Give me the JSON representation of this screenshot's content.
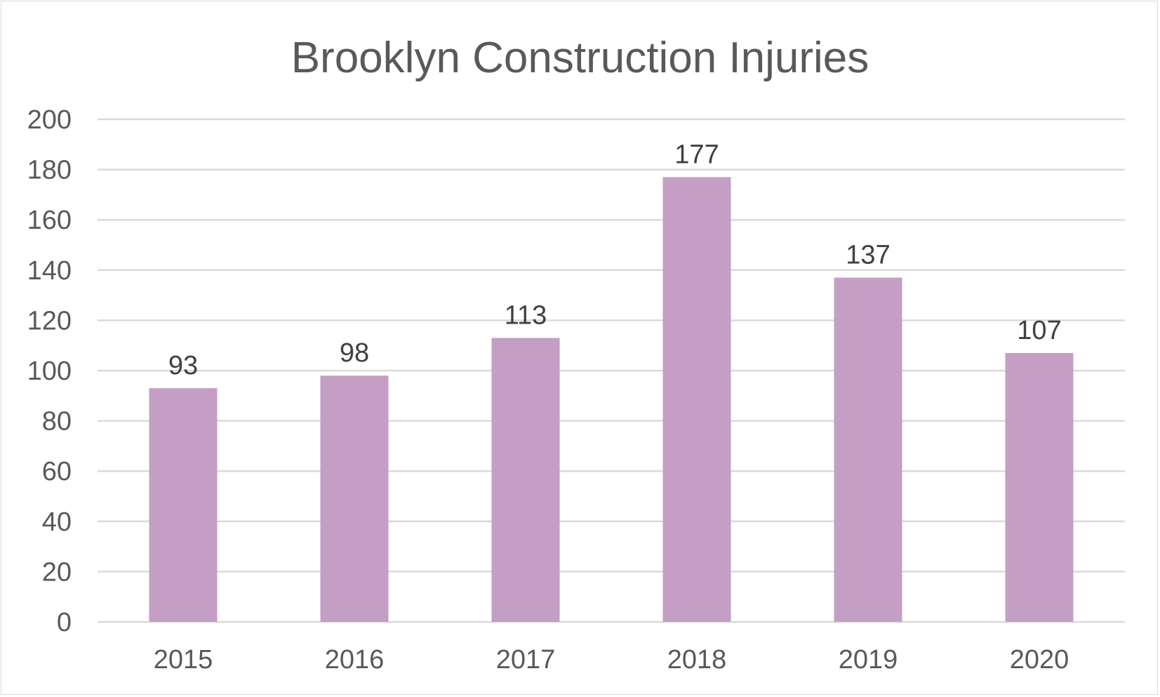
{
  "chart_data": {
    "type": "bar",
    "title": "Brooklyn Construction Injuries",
    "categories": [
      "2015",
      "2016",
      "2017",
      "2018",
      "2019",
      "2020"
    ],
    "values": [
      93,
      98,
      113,
      177,
      137,
      107
    ],
    "data_labels": [
      "93",
      "98",
      "113",
      "177",
      "137",
      "107"
    ],
    "xlabel": "",
    "ylabel": "",
    "ylim": [
      0,
      200
    ],
    "yticks": [
      "0",
      "20",
      "40",
      "60",
      "80",
      "100",
      "120",
      "140",
      "160",
      "180",
      "200"
    ],
    "grid": true,
    "legend": "none",
    "bar_color": "#c49ec4",
    "grid_color": "#d9d9d9",
    "text_color": "#595959"
  }
}
